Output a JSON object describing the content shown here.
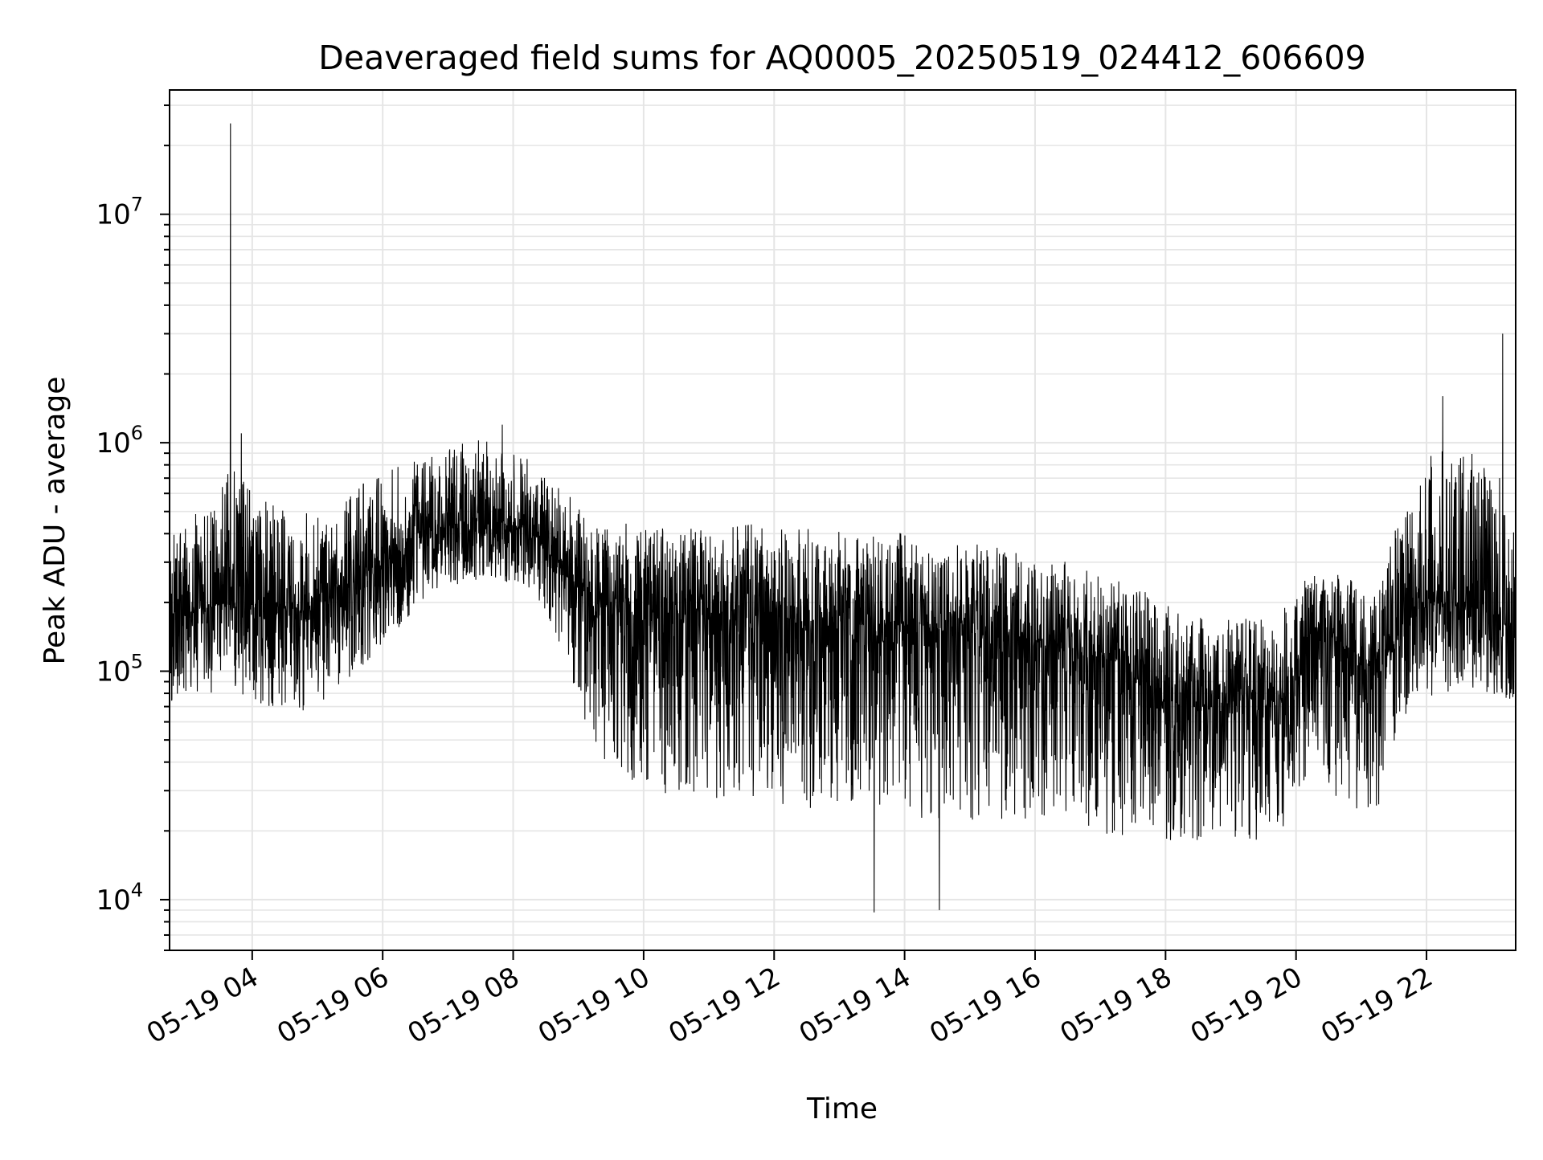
{
  "chart_data": {
    "type": "line",
    "title": "Deaveraged field sums for AQ0005_20250519_024412_606609",
    "xlabel": "Time",
    "ylabel": "Peak ADU - average",
    "yscale": "log",
    "ylim": [
      6000,
      35000000
    ],
    "xlim": [
      "2025-05-19 02:44",
      "2025-05-19 23:22"
    ],
    "grid": true,
    "line_color": "#000000",
    "grid_color": "#e5e5e5",
    "x_ticks": [
      {
        "label": "05-19 04",
        "time": "2025-05-19 04:00"
      },
      {
        "label": "05-19 06",
        "time": "2025-05-19 06:00"
      },
      {
        "label": "05-19 08",
        "time": "2025-05-19 08:00"
      },
      {
        "label": "05-19 10",
        "time": "2025-05-19 10:00"
      },
      {
        "label": "05-19 12",
        "time": "2025-05-19 12:00"
      },
      {
        "label": "05-19 14",
        "time": "2025-05-19 14:00"
      },
      {
        "label": "05-19 16",
        "time": "2025-05-19 16:00"
      },
      {
        "label": "05-19 18",
        "time": "2025-05-19 18:00"
      },
      {
        "label": "05-19 20",
        "time": "2025-05-19 20:00"
      },
      {
        "label": "05-19 22",
        "time": "2025-05-19 22:00"
      }
    ],
    "y_ticks": [
      {
        "base": "10",
        "exp": "4",
        "value": 10000
      },
      {
        "base": "10",
        "exp": "5",
        "value": 100000
      },
      {
        "base": "10",
        "exp": "6",
        "value": 1000000
      },
      {
        "base": "10",
        "exp": "7",
        "value": 10000000
      }
    ],
    "envelope": {
      "time": [
        "2025-05-19 02:45",
        "2025-05-19 03:15",
        "2025-05-19 03:45",
        "2025-05-19 04:15",
        "2025-05-19 04:45",
        "2025-05-19 05:15",
        "2025-05-19 05:45",
        "2025-05-19 06:15",
        "2025-05-19 06:45",
        "2025-05-19 07:15",
        "2025-05-19 07:45",
        "2025-05-19 08:15",
        "2025-05-19 08:45",
        "2025-05-19 09:15",
        "2025-05-19 09:45",
        "2025-05-19 10:15",
        "2025-05-19 10:45",
        "2025-05-19 11:15",
        "2025-05-19 11:45",
        "2025-05-19 12:15",
        "2025-05-19 12:45",
        "2025-05-19 13:15",
        "2025-05-19 13:45",
        "2025-05-19 14:15",
        "2025-05-19 14:45",
        "2025-05-19 15:15",
        "2025-05-19 15:45",
        "2025-05-19 16:15",
        "2025-05-19 16:45",
        "2025-05-19 17:15",
        "2025-05-19 17:45",
        "2025-05-19 18:15",
        "2025-05-19 18:45",
        "2025-05-19 19:15",
        "2025-05-19 19:45",
        "2025-05-19 20:15",
        "2025-05-19 20:45",
        "2025-05-19 21:15",
        "2025-05-19 21:45",
        "2025-05-19 22:15",
        "2025-05-19 22:45",
        "2025-05-19 23:15"
      ],
      "median": [
        170000,
        190000,
        200000,
        195000,
        185000,
        210000,
        260000,
        340000,
        420000,
        440000,
        450000,
        420000,
        280000,
        190000,
        185000,
        180000,
        175000,
        180000,
        175000,
        170000,
        165000,
        160000,
        160000,
        155000,
        150000,
        145000,
        140000,
        130000,
        120000,
        110000,
        80000,
        70000,
        72000,
        75000,
        75000,
        150000,
        130000,
        100000,
        180000,
        200000,
        190000,
        160000
      ],
      "high": [
        400000,
        600000,
        800000,
        550000,
        500000,
        480000,
        700000,
        800000,
        900000,
        1000000,
        1100000,
        850000,
        650000,
        450000,
        450000,
        430000,
        420000,
        450000,
        440000,
        420000,
        420000,
        400000,
        420000,
        380000,
        360000,
        360000,
        340000,
        320000,
        280000,
        260000,
        220000,
        180000,
        170000,
        170000,
        180000,
        280000,
        260000,
        230000,
        700000,
        1000000,
        900000,
        700000
      ],
      "low": [
        70000,
        80000,
        80000,
        70000,
        65000,
        80000,
        110000,
        150000,
        220000,
        240000,
        250000,
        230000,
        120000,
        45000,
        30000,
        28000,
        27000,
        28000,
        26000,
        25000,
        24000,
        24000,
        23000,
        22000,
        22000,
        22000,
        21000,
        20000,
        20000,
        19000,
        18000,
        18000,
        18000,
        18000,
        19000,
        40000,
        22000,
        25000,
        70000,
        80000,
        80000,
        75000
      ]
    },
    "spikes": [
      {
        "time": "2025-05-19 03:40",
        "value": 25000000
      },
      {
        "time": "2025-05-19 03:50",
        "value": 1100000
      },
      {
        "time": "2025-05-19 07:50",
        "value": 1200000
      },
      {
        "time": "2025-05-19 13:32",
        "value": 8800
      },
      {
        "time": "2025-05-19 14:32",
        "value": 9000
      },
      {
        "time": "2025-05-19 23:10",
        "value": 3000000
      },
      {
        "time": "2025-05-19 22:15",
        "value": 1600000
      }
    ]
  }
}
